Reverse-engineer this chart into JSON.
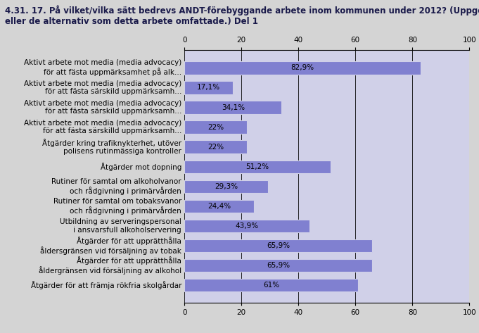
{
  "title_line1": "4.31. 17. På vilket/vilka sätt bedrevs ANDT-förebyggande arbete inom kommunen under 2012? (Uppge det",
  "title_line2": "eller de alternativ som detta arbete omfattade.) Del 1",
  "categories": [
    "Aktivt arbete mot media (media advocacy)\nför att fästa uppmärksamhet på alk...",
    "Aktivt arbete mot media (media advocacy)\nför att fästa särskild uppmärksamh...",
    "Aktivt arbete mot media (media advocacy)\nför att fästa särskild uppmärksamh...",
    "Aktivt arbete mot media (media advocacy)\nför att fästa särskilld uppmärksamh...",
    "Åtgärder kring trafiknykterhet, utöver\npolisens rutinmässiga kontroller",
    "Åtgärder mot dopning",
    "Rutiner för samtal om alkoholvanor\noch rådgivning i primärvården",
    "Rutiner för samtal om tobaksvanor\noch rådgivning i primärvården",
    "Utbildning av serveringspersonal\ni ansvarsfull alkoholservering",
    "Åtgärder för att upprätthålla\nåldersgränsen vid försäljning av tobak",
    "Åtgärder för att upprätthålla\nåldergränsen vid försäljning av alkohol",
    "Åtgärder för att främja rökfria skolgårdar"
  ],
  "values": [
    82.9,
    17.1,
    34.1,
    22.0,
    22.0,
    51.2,
    29.3,
    24.4,
    43.9,
    65.9,
    65.9,
    61.0
  ],
  "value_labels": [
    "82,9%",
    "17,1%",
    "34,1%",
    "22%",
    "22%",
    "51,2%",
    "29,3%",
    "24,4%",
    "43,9%",
    "65,9%",
    "65,9%",
    "61%"
  ],
  "bar_color": "#8080d0",
  "outer_background": "#d4d4d4",
  "plot_background": "#d0d0e8",
  "xlim": [
    0,
    100
  ],
  "xticks": [
    0,
    20,
    40,
    60,
    80,
    100
  ],
  "title_fontsize": 8.5,
  "label_fontsize": 7.5,
  "value_fontsize": 7.5
}
